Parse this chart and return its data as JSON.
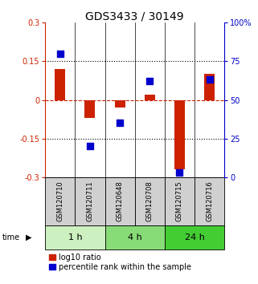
{
  "title": "GDS3433 / 30149",
  "samples": [
    "GSM120710",
    "GSM120711",
    "GSM120648",
    "GSM120708",
    "GSM120715",
    "GSM120716"
  ],
  "log10_ratio": [
    0.12,
    -0.07,
    -0.03,
    0.02,
    -0.27,
    0.1
  ],
  "percentile_rank": [
    80,
    20,
    35,
    62,
    3,
    63
  ],
  "ylim_left": [
    -0.3,
    0.3
  ],
  "ylim_right": [
    0,
    100
  ],
  "yticks_left": [
    -0.3,
    -0.15,
    0,
    0.15,
    0.3
  ],
  "yticks_right": [
    0,
    25,
    50,
    75,
    100
  ],
  "ytick_labels_left": [
    "-0.3",
    "-0.15",
    "0",
    "0.15",
    "0.3"
  ],
  "ytick_labels_right": [
    "0",
    "25",
    "50",
    "75",
    "100%"
  ],
  "hlines": [
    0.15,
    -0.15
  ],
  "hline_zero": 0,
  "time_groups": [
    {
      "label": "1 h",
      "indices": [
        0,
        1
      ],
      "color": "#ccf0c0"
    },
    {
      "label": "4 h",
      "indices": [
        2,
        3
      ],
      "color": "#88dc78"
    },
    {
      "label": "24 h",
      "indices": [
        4,
        5
      ],
      "color": "#44cc33"
    }
  ],
  "bar_color": "#cc2200",
  "scatter_color": "#0000cc",
  "bar_width": 0.35,
  "scatter_size": 30,
  "background_color": "#ffffff",
  "sample_box_color": "#d0d0d0",
  "title_fontsize": 10,
  "tick_fontsize": 7,
  "legend_fontsize": 7,
  "sample_fontsize": 6,
  "time_fontsize": 8
}
